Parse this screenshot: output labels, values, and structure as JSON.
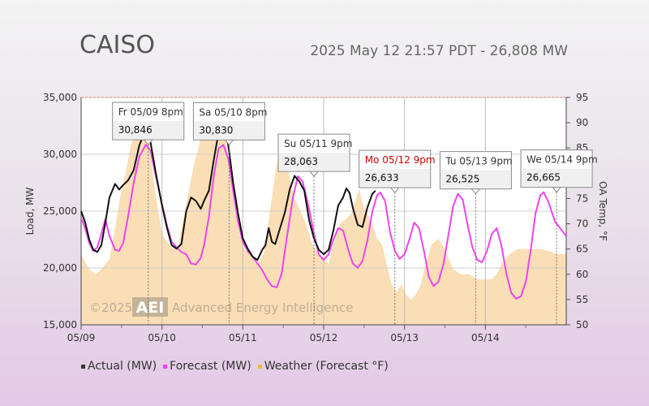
{
  "header": {
    "title": "CAISO",
    "subtitle": "2025 May 12 21:57 PDT - 26,808 MW"
  },
  "colors": {
    "actual": "#111111",
    "forecast": "#ee44ee",
    "weather": "#f5c27a",
    "today_callout": "#cc0000"
  },
  "legend": [
    {
      "label": "Actual (MW)",
      "color": "#333333"
    },
    {
      "label": "Forecast (MW)",
      "color": "#ee44ee"
    },
    {
      "label": "Weather (Forecast °F)",
      "color": "#f5b74a"
    }
  ],
  "watermark": "©2025 AEI Advanced Energy Intelligence",
  "chart_data": {
    "type": "line",
    "xlabel": "",
    "ylabel": "Load, MW",
    "y2label": "OA Temp, °F",
    "x_ticks": [
      "05/09",
      "05/10",
      "05/11",
      "05/12",
      "05/13",
      "05/14"
    ],
    "ylim": [
      15000,
      35000
    ],
    "y_ticks": [
      "15,000",
      "20,000",
      "25,000",
      "30,000",
      "35,000"
    ],
    "y2lim": [
      50,
      95
    ],
    "y2_ticks": [
      "50",
      "55",
      "60",
      "65",
      "70",
      "75",
      "80",
      "85",
      "90",
      "95"
    ],
    "x_range_days": [
      0,
      6
    ],
    "series": [
      {
        "name": "Actual (MW)",
        "points": [
          [
            0,
            25000
          ],
          [
            0.05,
            24000
          ],
          [
            0.1,
            22500
          ],
          [
            0.15,
            21600
          ],
          [
            0.2,
            21400
          ],
          [
            0.25,
            22000
          ],
          [
            0.3,
            24000
          ],
          [
            0.35,
            26200
          ],
          [
            0.42,
            27400
          ],
          [
            0.47,
            26900
          ],
          [
            0.52,
            27300
          ],
          [
            0.58,
            27700
          ],
          [
            0.65,
            28600
          ],
          [
            0.72,
            30800
          ],
          [
            0.8,
            32200
          ],
          [
            0.86,
            31000
          ],
          [
            0.92,
            28500
          ],
          [
            1.0,
            25500
          ],
          [
            1.06,
            23600
          ],
          [
            1.12,
            22000
          ],
          [
            1.18,
            21700
          ],
          [
            1.24,
            22100
          ],
          [
            1.3,
            25000
          ],
          [
            1.36,
            26200
          ],
          [
            1.42,
            25900
          ],
          [
            1.48,
            25200
          ],
          [
            1.52,
            25900
          ],
          [
            1.58,
            26800
          ],
          [
            1.64,
            29500
          ],
          [
            1.7,
            31900
          ],
          [
            1.76,
            32700
          ],
          [
            1.82,
            30800
          ],
          [
            1.88,
            27500
          ],
          [
            1.94,
            24800
          ],
          [
            2.0,
            22600
          ],
          [
            2.06,
            21700
          ],
          [
            2.12,
            21000
          ],
          [
            2.18,
            20700
          ],
          [
            2.24,
            21600
          ],
          [
            2.28,
            22000
          ],
          [
            2.32,
            23500
          ],
          [
            2.36,
            22300
          ],
          [
            2.4,
            22100
          ],
          [
            2.46,
            23500
          ],
          [
            2.52,
            24900
          ],
          [
            2.58,
            26900
          ],
          [
            2.64,
            28100
          ],
          [
            2.7,
            27600
          ],
          [
            2.76,
            26800
          ],
          [
            2.82,
            24200
          ],
          [
            2.88,
            22600
          ],
          [
            2.94,
            21600
          ],
          [
            3.0,
            21200
          ],
          [
            3.06,
            21600
          ],
          [
            3.12,
            23300
          ],
          [
            3.18,
            25500
          ],
          [
            3.24,
            26200
          ],
          [
            3.28,
            27000
          ],
          [
            3.32,
            26600
          ],
          [
            3.36,
            25300
          ],
          [
            3.42,
            23800
          ],
          [
            3.48,
            23600
          ],
          [
            3.54,
            25300
          ],
          [
            3.6,
            26500
          ],
          [
            3.64,
            26800
          ]
        ]
      },
      {
        "name": "Forecast (MW)",
        "points": [
          [
            0,
            24400
          ],
          [
            0.05,
            23500
          ],
          [
            0.1,
            22200
          ],
          [
            0.15,
            21500
          ],
          [
            0.2,
            21800
          ],
          [
            0.25,
            23000
          ],
          [
            0.3,
            24300
          ],
          [
            0.35,
            22800
          ],
          [
            0.42,
            21600
          ],
          [
            0.47,
            21500
          ],
          [
            0.52,
            22200
          ],
          [
            0.58,
            24500
          ],
          [
            0.65,
            27500
          ],
          [
            0.72,
            29800
          ],
          [
            0.8,
            30846
          ],
          [
            0.86,
            30300
          ],
          [
            0.92,
            28200
          ],
          [
            1.0,
            25600
          ],
          [
            1.06,
            23800
          ],
          [
            1.12,
            22300
          ],
          [
            1.18,
            21800
          ],
          [
            1.24,
            21400
          ],
          [
            1.3,
            21200
          ],
          [
            1.36,
            20400
          ],
          [
            1.42,
            20300
          ],
          [
            1.48,
            20900
          ],
          [
            1.52,
            22000
          ],
          [
            1.58,
            24500
          ],
          [
            1.64,
            28100
          ],
          [
            1.7,
            30500
          ],
          [
            1.76,
            30830
          ],
          [
            1.82,
            29600
          ],
          [
            1.88,
            26800
          ],
          [
            1.94,
            24100
          ],
          [
            2.0,
            22300
          ],
          [
            2.06,
            21500
          ],
          [
            2.12,
            21000
          ],
          [
            2.18,
            20400
          ],
          [
            2.24,
            19800
          ],
          [
            2.3,
            19000
          ],
          [
            2.36,
            18400
          ],
          [
            2.42,
            18300
          ],
          [
            2.48,
            19500
          ],
          [
            2.54,
            22500
          ],
          [
            2.62,
            26200
          ],
          [
            2.68,
            28063
          ],
          [
            2.74,
            27600
          ],
          [
            2.82,
            25200
          ],
          [
            2.88,
            23000
          ],
          [
            2.94,
            21200
          ],
          [
            3.0,
            20700
          ],
          [
            3.06,
            21200
          ],
          [
            3.12,
            22500
          ],
          [
            3.18,
            23500
          ],
          [
            3.24,
            23300
          ],
          [
            3.3,
            21700
          ],
          [
            3.36,
            20400
          ],
          [
            3.42,
            20000
          ],
          [
            3.48,
            20600
          ],
          [
            3.54,
            22400
          ],
          [
            3.6,
            24900
          ],
          [
            3.66,
            26400
          ],
          [
            3.7,
            26633
          ],
          [
            3.76,
            25900
          ],
          [
            3.82,
            23200
          ],
          [
            3.88,
            21500
          ],
          [
            3.94,
            20800
          ],
          [
            4.0,
            21200
          ],
          [
            4.06,
            22500
          ],
          [
            4.12,
            24000
          ],
          [
            4.18,
            23500
          ],
          [
            4.24,
            21500
          ],
          [
            4.3,
            19200
          ],
          [
            4.36,
            18400
          ],
          [
            4.42,
            18800
          ],
          [
            4.48,
            20300
          ],
          [
            4.54,
            22800
          ],
          [
            4.6,
            25400
          ],
          [
            4.66,
            26525
          ],
          [
            4.72,
            26000
          ],
          [
            4.78,
            23800
          ],
          [
            4.84,
            21800
          ],
          [
            4.9,
            20700
          ],
          [
            4.96,
            20500
          ],
          [
            5.02,
            21500
          ],
          [
            5.08,
            23000
          ],
          [
            5.14,
            23500
          ],
          [
            5.2,
            21900
          ],
          [
            5.26,
            19500
          ],
          [
            5.32,
            17800
          ],
          [
            5.38,
            17300
          ],
          [
            5.44,
            17500
          ],
          [
            5.5,
            18800
          ],
          [
            5.56,
            21500
          ],
          [
            5.62,
            24800
          ],
          [
            5.68,
            26400
          ],
          [
            5.72,
            26665
          ],
          [
            5.78,
            25800
          ],
          [
            5.86,
            24100
          ],
          [
            6.0,
            22800
          ]
        ]
      },
      {
        "name": "Weather (Forecast °F)",
        "points": [
          [
            0,
            64
          ],
          [
            0.1,
            61
          ],
          [
            0.18,
            60
          ],
          [
            0.25,
            61
          ],
          [
            0.35,
            63
          ],
          [
            0.42,
            69
          ],
          [
            0.48,
            75
          ],
          [
            0.55,
            80
          ],
          [
            0.62,
            86
          ],
          [
            0.7,
            89
          ],
          [
            0.78,
            90
          ],
          [
            0.84,
            87
          ],
          [
            0.9,
            78
          ],
          [
            0.96,
            72
          ],
          [
            1.0,
            68
          ],
          [
            1.08,
            66
          ],
          [
            1.14,
            65
          ],
          [
            1.2,
            65.5
          ],
          [
            1.3,
            74
          ],
          [
            1.4,
            82
          ],
          [
            1.5,
            88
          ],
          [
            1.58,
            91
          ],
          [
            1.66,
            93
          ],
          [
            1.72,
            92
          ],
          [
            1.78,
            88
          ],
          [
            1.84,
            80
          ],
          [
            1.9,
            73
          ],
          [
            1.96,
            68
          ],
          [
            2.02,
            65
          ],
          [
            2.1,
            64
          ],
          [
            2.18,
            62
          ],
          [
            2.26,
            64
          ],
          [
            2.34,
            73
          ],
          [
            2.42,
            82
          ],
          [
            2.48,
            86
          ],
          [
            2.52,
            84
          ],
          [
            2.58,
            79
          ],
          [
            2.64,
            75
          ],
          [
            2.7,
            73
          ],
          [
            2.78,
            70
          ],
          [
            2.86,
            66
          ],
          [
            2.94,
            64
          ],
          [
            3.0,
            63
          ],
          [
            3.06,
            62
          ],
          [
            3.12,
            66
          ],
          [
            3.2,
            70
          ],
          [
            3.28,
            71
          ],
          [
            3.34,
            72
          ],
          [
            3.4,
            75
          ],
          [
            3.44,
            77
          ],
          [
            3.48,
            74
          ],
          [
            3.54,
            72
          ],
          [
            3.6,
            70
          ],
          [
            3.66,
            67
          ],
          [
            3.72,
            66
          ],
          [
            3.78,
            62
          ],
          [
            3.84,
            58
          ],
          [
            3.9,
            56.5
          ],
          [
            3.96,
            58
          ],
          [
            4.02,
            56
          ],
          [
            4.08,
            55
          ],
          [
            4.14,
            56
          ],
          [
            4.2,
            58
          ],
          [
            4.26,
            62
          ],
          [
            4.34,
            66
          ],
          [
            4.42,
            67
          ],
          [
            4.5,
            65
          ],
          [
            4.6,
            61
          ],
          [
            4.7,
            60
          ],
          [
            4.8,
            60
          ],
          [
            4.9,
            59
          ],
          [
            5.0,
            59
          ],
          [
            5.08,
            59
          ],
          [
            5.14,
            60
          ],
          [
            5.2,
            62
          ],
          [
            5.3,
            64
          ],
          [
            5.4,
            65
          ],
          [
            5.5,
            65
          ],
          [
            5.6,
            65
          ],
          [
            5.7,
            65
          ],
          [
            5.8,
            64.5
          ],
          [
            5.9,
            64
          ],
          [
            6.0,
            64
          ]
        ]
      }
    ],
    "callouts": [
      {
        "label": "Fr 05/09 8pm",
        "value": "30,846",
        "x": 0.83,
        "y": 30846,
        "today": false
      },
      {
        "label": "Sa 05/10 8pm",
        "value": "30,830",
        "x": 1.83,
        "y": 30830,
        "today": false
      },
      {
        "label": "Su 05/11 9pm",
        "value": "28,063",
        "x": 2.88,
        "y": 28063,
        "today": false
      },
      {
        "label": "Mo 05/12 9pm",
        "value": "26,633",
        "x": 3.88,
        "y": 26633,
        "today": true
      },
      {
        "label": "Tu 05/13 9pm",
        "value": "26,525",
        "x": 4.88,
        "y": 26525,
        "today": false
      },
      {
        "label": "We 05/14 9pm",
        "value": "26,665",
        "x": 5.88,
        "y": 26665,
        "today": false
      }
    ],
    "grid": true,
    "legend_position": "bottom-left"
  }
}
